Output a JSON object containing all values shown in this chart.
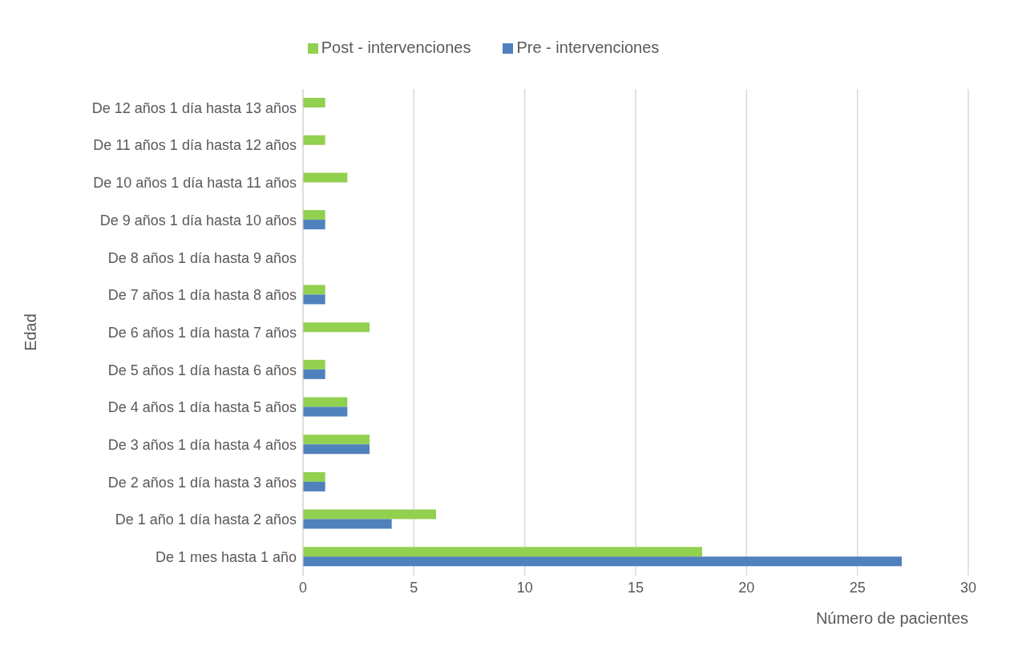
{
  "chart_data": {
    "type": "bar",
    "orientation": "horizontal",
    "xlabel": "Número de pacientes",
    "ylabel": "Edad",
    "categories": [
      "De 12 años 1 día hasta 13 años",
      "De 11 años 1 día hasta 12 años",
      "De 10 años 1 día hasta 11 años",
      "De 9 años 1 día hasta 10 años",
      "De 8 años 1 día hasta 9 años",
      "De 7 años 1 día hasta 8 años",
      "De 6 años 1 día hasta 7 años",
      "De 5 años 1 día hasta 6 años",
      "De 4 años 1 día hasta 5 años",
      "De 3 años 1 día hasta 4 años",
      "De 2 años 1 día hasta 3 años",
      "De 1 año 1 día hasta 2 años",
      "De 1 mes hasta 1 año"
    ],
    "series": [
      {
        "name": "Post - intervenciones",
        "color": "#92d050",
        "values": [
          1,
          1,
          2,
          1,
          0,
          1,
          3,
          1,
          2,
          3,
          1,
          6,
          18
        ]
      },
      {
        "name": "Pre - intervenciones",
        "color": "#4f81bd",
        "values": [
          0,
          0,
          0,
          1,
          0,
          1,
          0,
          1,
          2,
          3,
          1,
          4,
          27
        ]
      }
    ],
    "xlim": [
      0,
      30
    ],
    "xticks": [
      0,
      5,
      10,
      15,
      20,
      25,
      30
    ],
    "grid": "x",
    "legend": "top"
  }
}
